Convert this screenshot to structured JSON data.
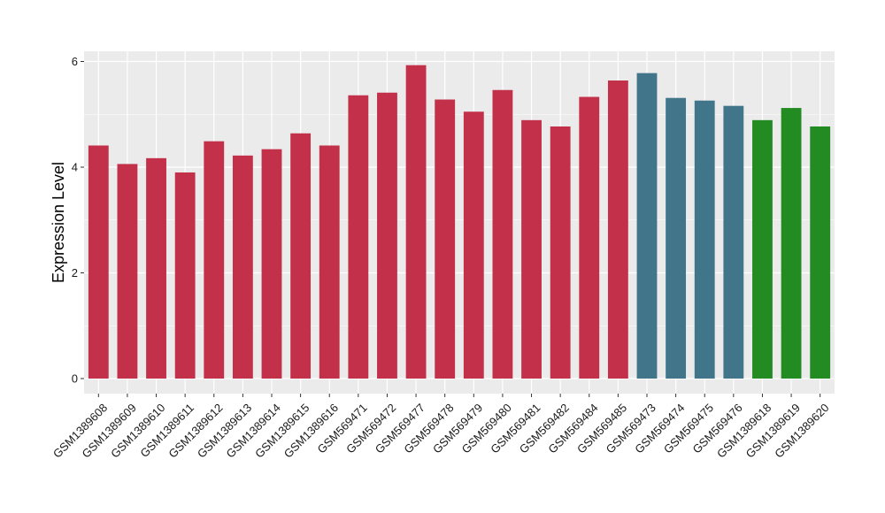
{
  "chart_data": {
    "type": "bar",
    "title": "",
    "xlabel": "",
    "ylabel": "Expression Level",
    "ylim": [
      0,
      6.3
    ],
    "yticks": [
      0,
      2,
      4,
      6
    ],
    "grid": true,
    "legend": "none",
    "colors": {
      "panel_background": "#ebebeb",
      "grid": "#ffffff",
      "red": "#c3304a",
      "teal": "#41768a",
      "green": "#228b22"
    },
    "categories": [
      "GSM1389608",
      "GSM1389609",
      "GSM1389610",
      "GSM1389611",
      "GSM1389612",
      "GSM1389613",
      "GSM1389614",
      "GSM1389615",
      "GSM1389616",
      "GSM569471",
      "GSM569472",
      "GSM569477",
      "GSM569478",
      "GSM569479",
      "GSM569480",
      "GSM569481",
      "GSM569482",
      "GSM569484",
      "GSM569485",
      "GSM569473",
      "GSM569474",
      "GSM569475",
      "GSM569476",
      "GSM1389618",
      "GSM1389619",
      "GSM1389620"
    ],
    "values": [
      4.41,
      4.06,
      4.17,
      3.9,
      4.49,
      4.22,
      4.34,
      4.64,
      4.41,
      5.36,
      5.41,
      5.93,
      5.28,
      5.05,
      5.46,
      4.89,
      4.77,
      5.33,
      5.64,
      5.78,
      5.31,
      5.26,
      5.16,
      4.89,
      5.12,
      4.77
    ],
    "bar_colors": [
      "#c3304a",
      "#c3304a",
      "#c3304a",
      "#c3304a",
      "#c3304a",
      "#c3304a",
      "#c3304a",
      "#c3304a",
      "#c3304a",
      "#c3304a",
      "#c3304a",
      "#c3304a",
      "#c3304a",
      "#c3304a",
      "#c3304a",
      "#c3304a",
      "#c3304a",
      "#c3304a",
      "#c3304a",
      "#41768a",
      "#41768a",
      "#41768a",
      "#41768a",
      "#228b22",
      "#228b22",
      "#228b22"
    ]
  }
}
